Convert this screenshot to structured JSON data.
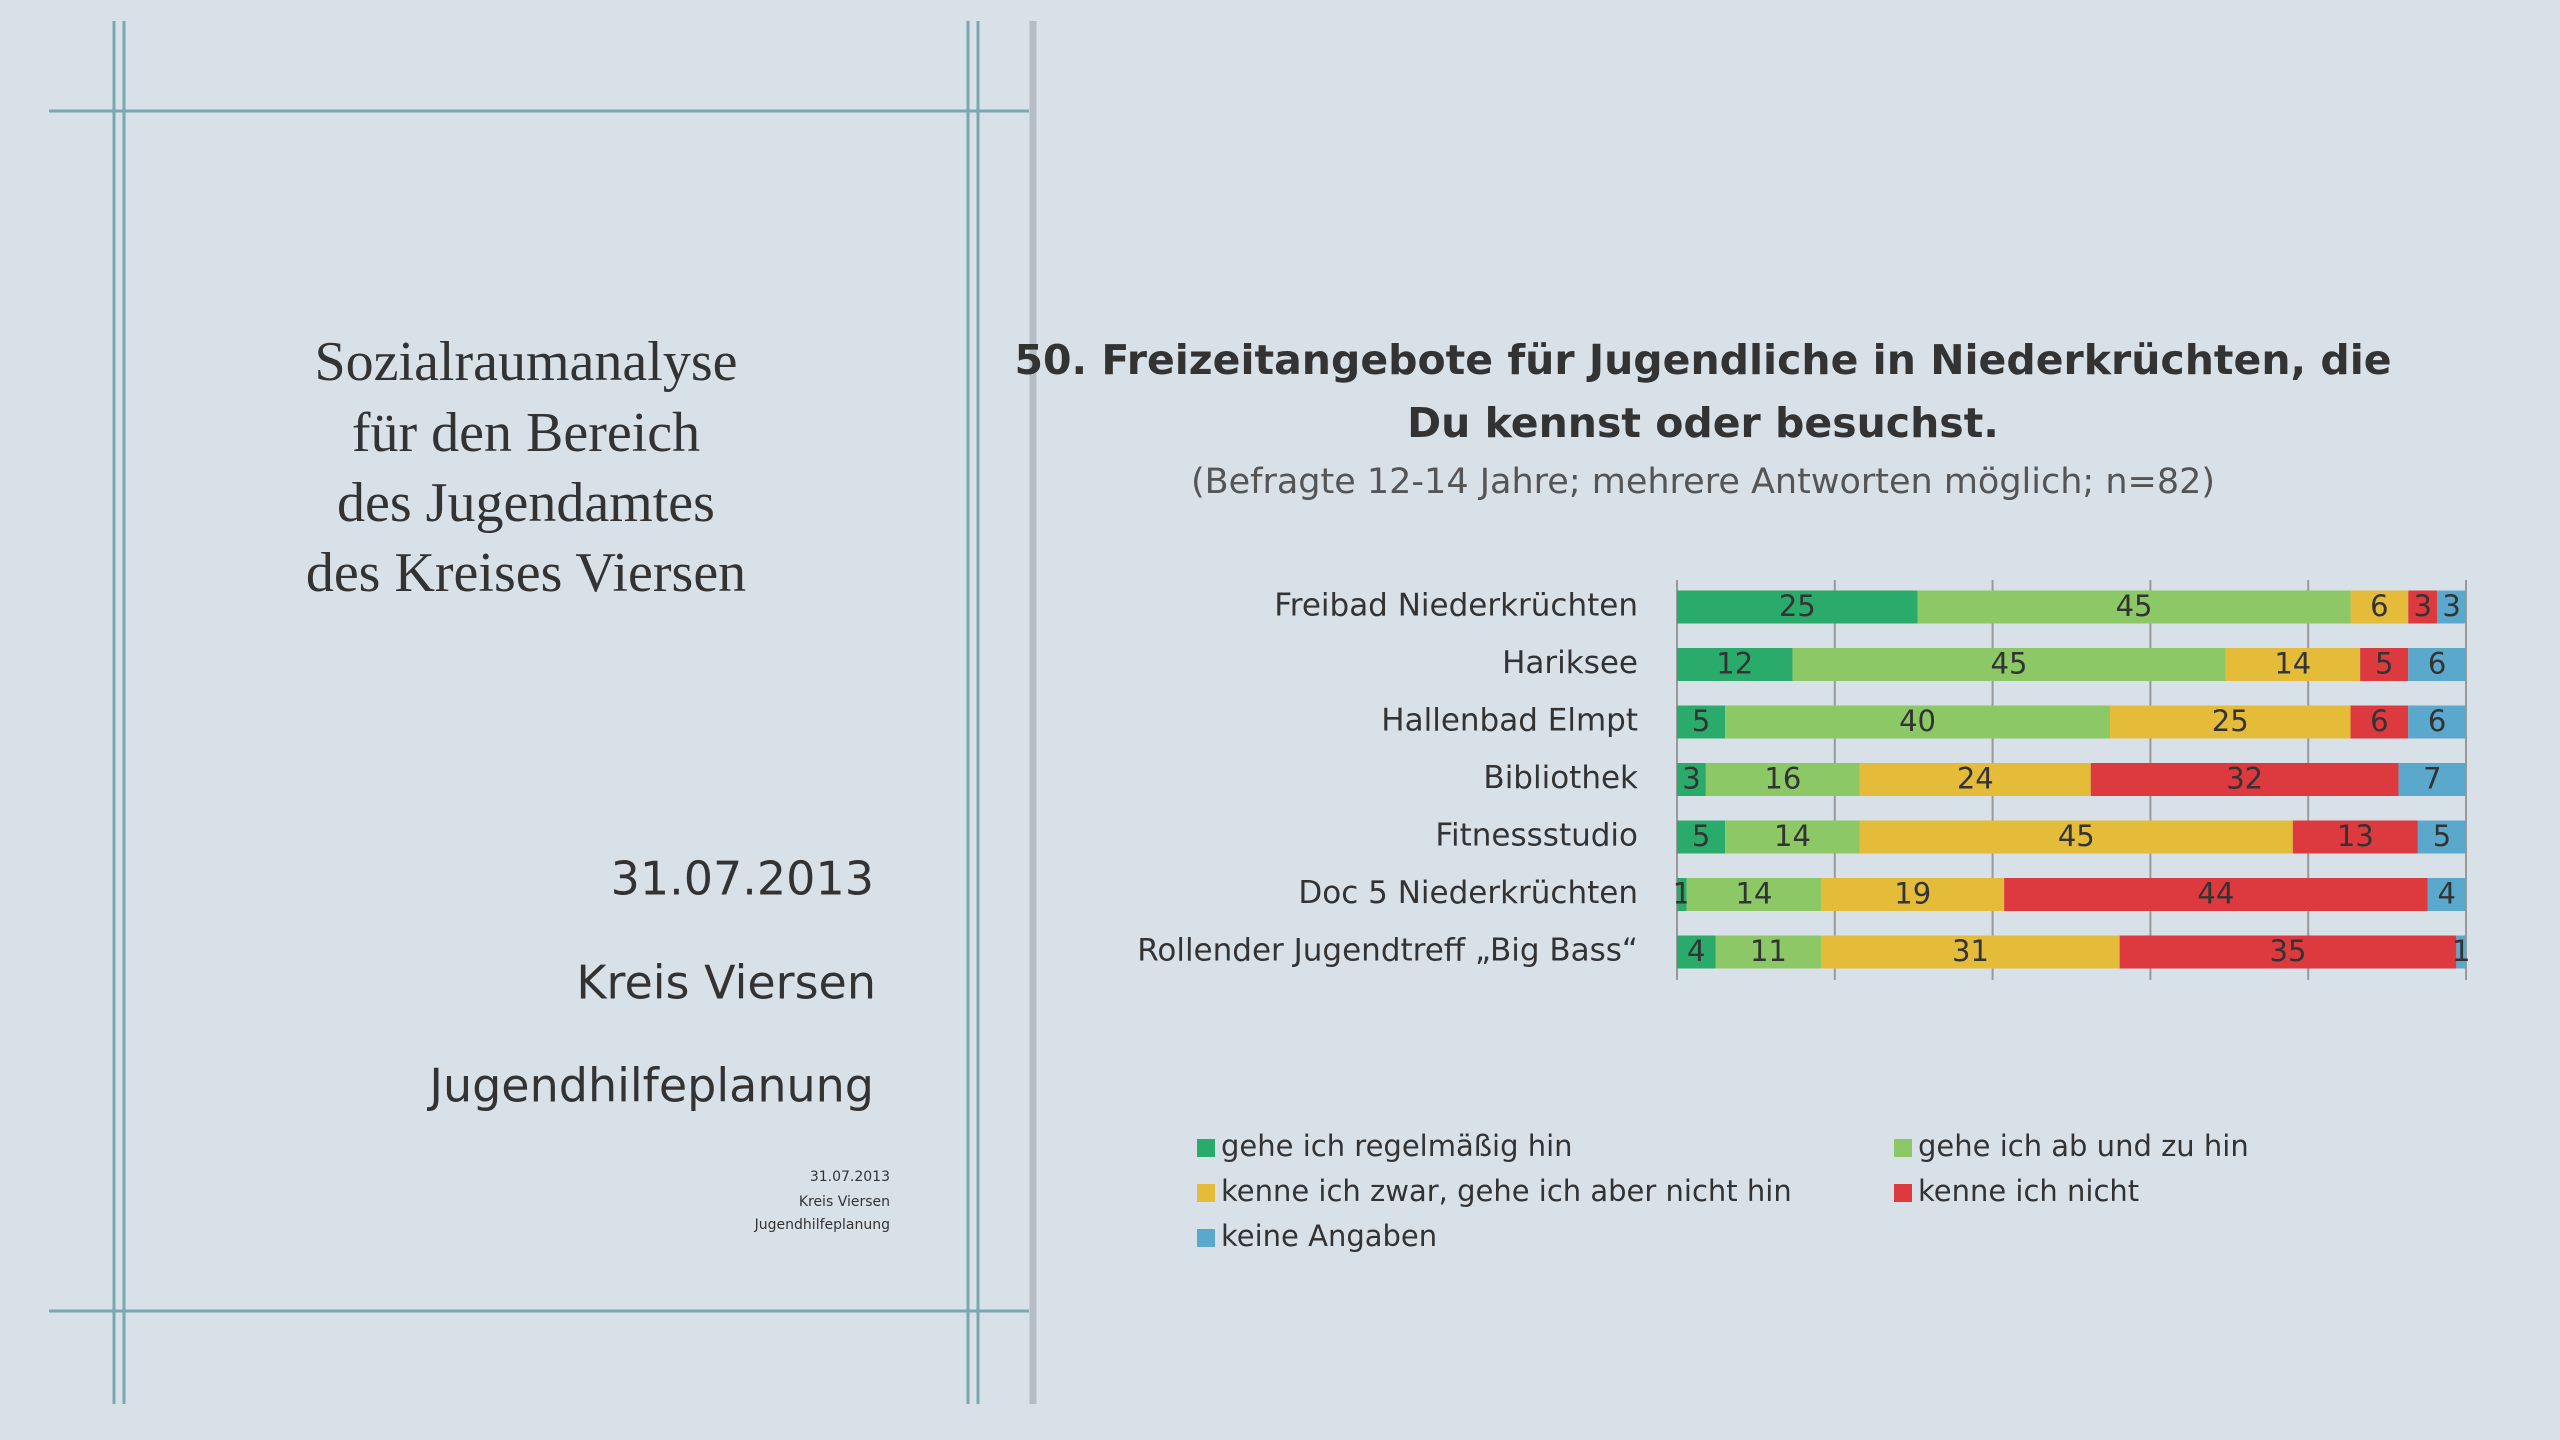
{
  "document": {
    "title_lines": [
      "Sozialraumanalyse",
      "für den Bereich",
      "des Jugendamtes",
      "des Kreises Viersen"
    ],
    "date": "31.07.2013",
    "organization": "Kreis Viersen",
    "department": "Jugendhilfeplanung",
    "footer_lines": [
      "31.07.2013",
      "Kreis Viersen",
      "Jugendhilfeplanung"
    ]
  },
  "chart_data": {
    "type": "stacked-bar-horizontal",
    "title_lines": [
      "50. Freizeitangebote für Jugendliche in Niederkrüchten, die",
      "Du kennst oder besuchst."
    ],
    "subtitle": "(Befragte 12-14 Jahre; mehrere Antworten möglich; n=82)",
    "categories": [
      "Freibad Niederkrüchten",
      "Hariksee",
      "Hallenbad Elmpt",
      "Bibliothek",
      "Fitnessstudio",
      "Doc 5 Niederkrüchten",
      "Rollender Jugendtreff „Big Bass“"
    ],
    "series": [
      {
        "name": "gehe ich regelmäßig hin",
        "color": "#2bab6b",
        "values": [
          25,
          12,
          5,
          3,
          5,
          1,
          4
        ]
      },
      {
        "name": "gehe ich ab und zu hin",
        "color": "#8cc866",
        "values": [
          45,
          45,
          40,
          16,
          14,
          14,
          11
        ]
      },
      {
        "name": "kenne ich zwar, gehe ich aber nicht hin",
        "color": "#e4bc3a",
        "values": [
          6,
          14,
          25,
          24,
          45,
          19,
          31
        ]
      },
      {
        "name": "kenne ich nicht",
        "color": "#dc3a3e",
        "values": [
          3,
          5,
          6,
          32,
          13,
          44,
          35
        ]
      },
      {
        "name": "keine Angaben",
        "color": "#5aa9cc",
        "values": [
          3,
          6,
          6,
          7,
          5,
          4,
          1
        ]
      }
    ],
    "xlim": [
      0,
      82
    ],
    "xticks": [
      0,
      16.4,
      32.8,
      49.2,
      65.6,
      82
    ],
    "grid": true
  }
}
